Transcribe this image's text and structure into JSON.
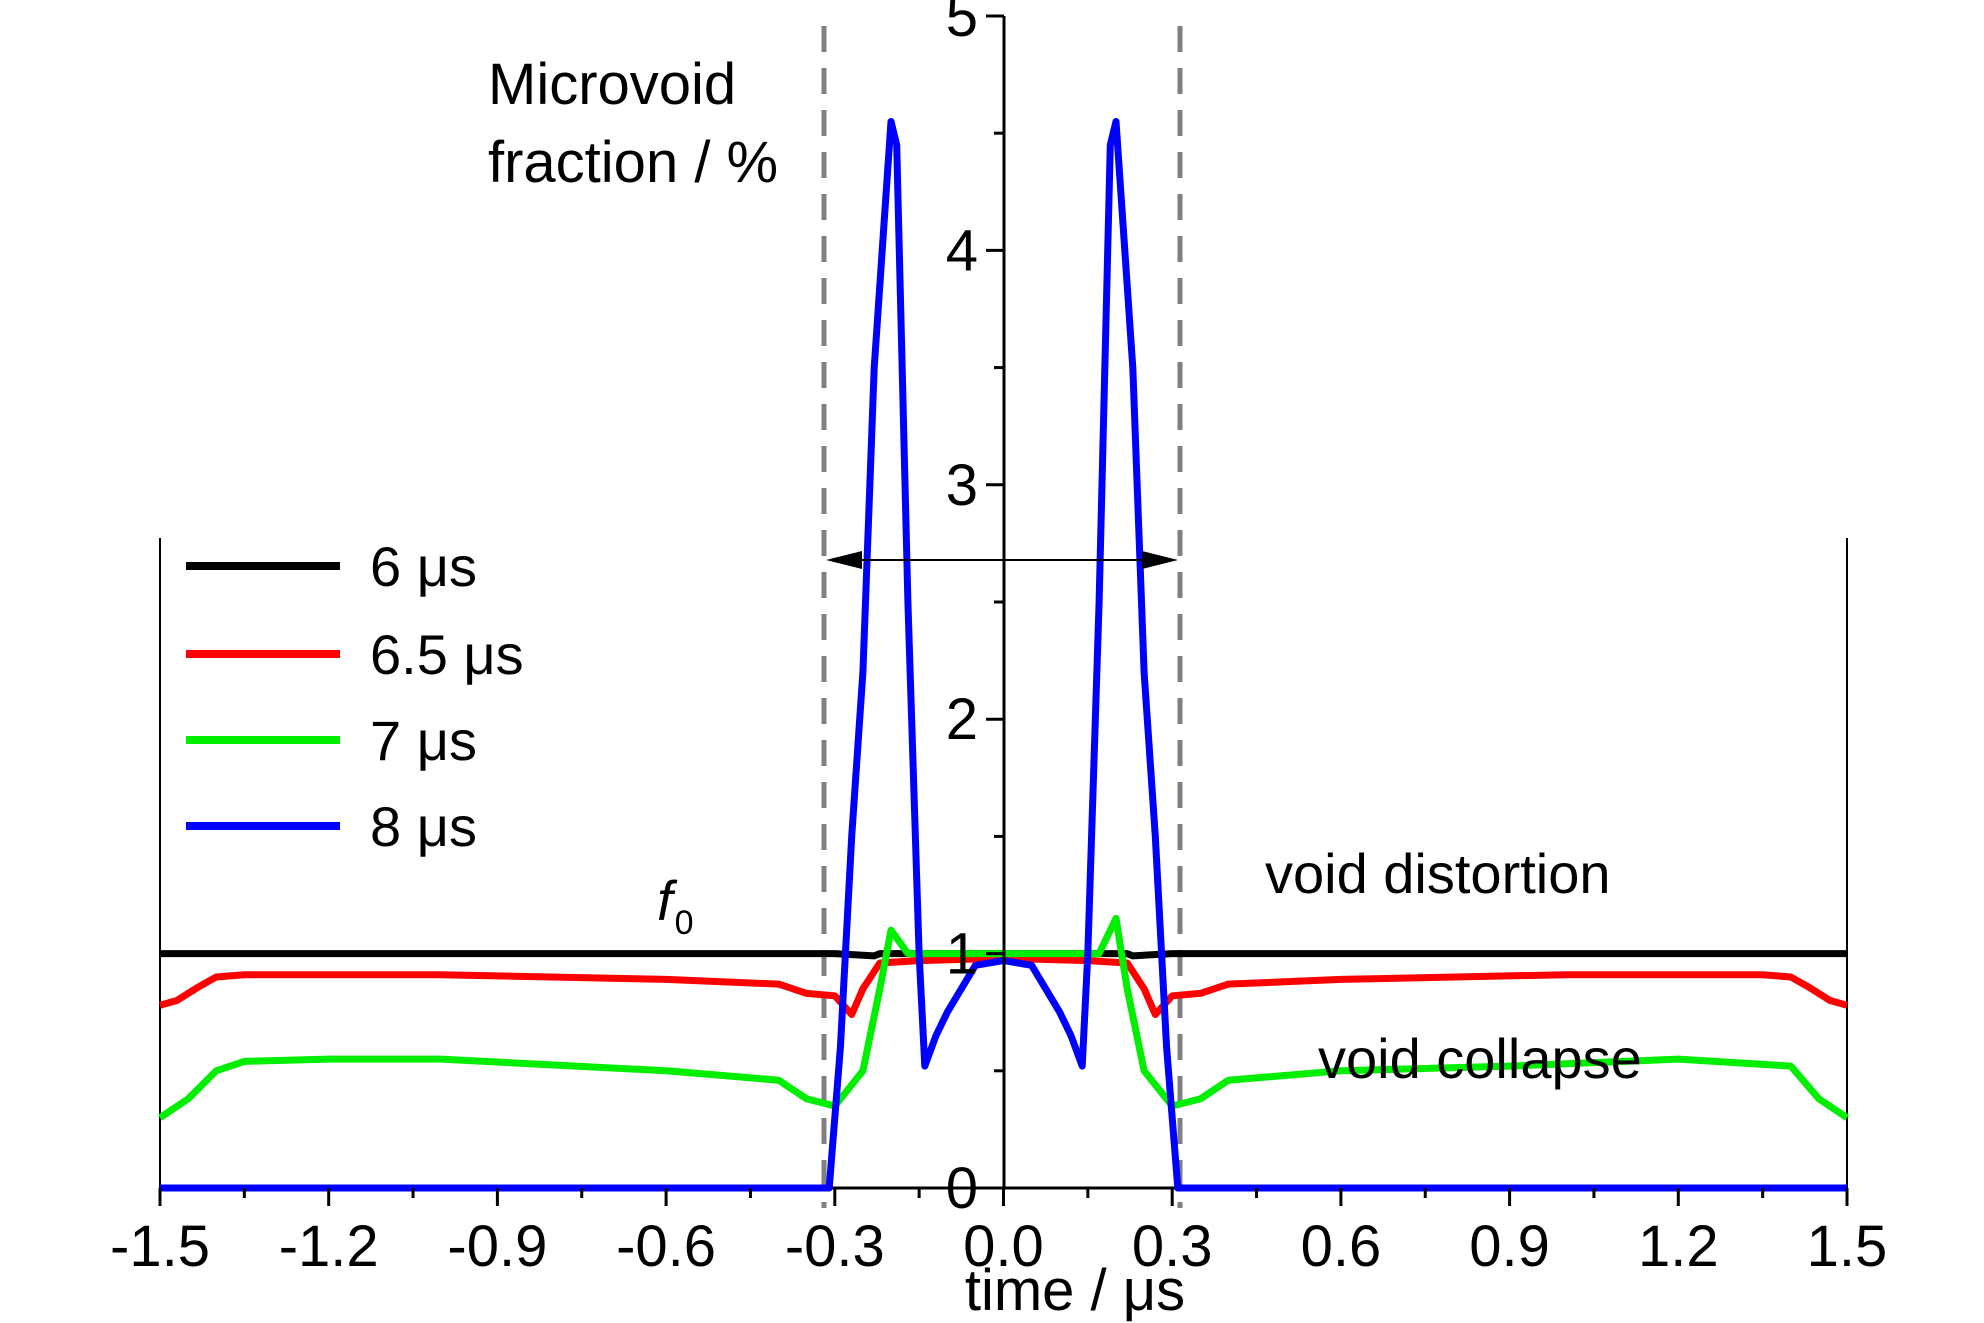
{
  "chart_data": {
    "type": "line",
    "title": "",
    "xlabel": "time / μs",
    "ylabel_line1": "Microvoid",
    "ylabel_line2": "fraction / %",
    "xlim": [
      -1.5,
      1.5
    ],
    "ylim": [
      0,
      5
    ],
    "x_ticks": [
      -1.5,
      -1.2,
      -0.9,
      -0.6,
      -0.3,
      0.0,
      0.3,
      0.6,
      0.9,
      1.2,
      1.5
    ],
    "x_tick_labels": [
      "-1.5",
      "-1.2",
      "-0.9",
      "-0.6",
      "-0.3",
      "0.0",
      "0.3",
      "0.6",
      "0.9",
      "1.2",
      "1.5"
    ],
    "y_ticks": [
      0,
      1,
      2,
      3,
      4,
      5
    ],
    "y_tick_labels": [
      "0",
      "1",
      "2",
      "3",
      "4",
      "5"
    ],
    "grid": false,
    "legend_position": "left",
    "series": [
      {
        "name": "6 μs",
        "color": "#000000",
        "points": [
          [
            -1.5,
            1.0
          ],
          [
            -0.3,
            1.0
          ],
          [
            -0.23,
            0.99
          ],
          [
            -0.22,
            1.0
          ],
          [
            0.22,
            1.0
          ],
          [
            0.23,
            0.99
          ],
          [
            0.3,
            1.0
          ],
          [
            1.5,
            1.0
          ]
        ]
      },
      {
        "name": "6.5 μs",
        "color": "#ff0000",
        "points": [
          [
            -1.5,
            0.78
          ],
          [
            -1.47,
            0.8
          ],
          [
            -1.43,
            0.86
          ],
          [
            -1.4,
            0.9
          ],
          [
            -1.35,
            0.91
          ],
          [
            -1.0,
            0.91
          ],
          [
            -0.6,
            0.89
          ],
          [
            -0.4,
            0.87
          ],
          [
            -0.35,
            0.83
          ],
          [
            -0.3,
            0.82
          ],
          [
            -0.27,
            0.74
          ],
          [
            -0.25,
            0.85
          ],
          [
            -0.22,
            0.96
          ],
          [
            -0.15,
            0.97
          ],
          [
            0.0,
            0.98
          ],
          [
            0.15,
            0.97
          ],
          [
            0.22,
            0.96
          ],
          [
            0.25,
            0.85
          ],
          [
            0.27,
            0.74
          ],
          [
            0.3,
            0.82
          ],
          [
            0.35,
            0.83
          ],
          [
            0.4,
            0.87
          ],
          [
            0.6,
            0.89
          ],
          [
            1.0,
            0.91
          ],
          [
            1.35,
            0.91
          ],
          [
            1.4,
            0.9
          ],
          [
            1.43,
            0.86
          ],
          [
            1.47,
            0.8
          ],
          [
            1.5,
            0.78
          ]
        ]
      },
      {
        "name": "7 μs",
        "color": "#00ee00",
        "points": [
          [
            -1.5,
            0.3
          ],
          [
            -1.45,
            0.38
          ],
          [
            -1.4,
            0.5
          ],
          [
            -1.35,
            0.54
          ],
          [
            -1.2,
            0.55
          ],
          [
            -1.0,
            0.55
          ],
          [
            -0.6,
            0.5
          ],
          [
            -0.4,
            0.46
          ],
          [
            -0.35,
            0.38
          ],
          [
            -0.3,
            0.35
          ],
          [
            -0.25,
            0.5
          ],
          [
            -0.22,
            0.85
          ],
          [
            -0.2,
            1.1
          ],
          [
            -0.17,
            1.0
          ],
          [
            -0.15,
            1.0
          ],
          [
            0.0,
            1.0
          ],
          [
            0.15,
            1.0
          ],
          [
            0.17,
            1.0
          ],
          [
            0.2,
            1.15
          ],
          [
            0.22,
            0.85
          ],
          [
            0.25,
            0.5
          ],
          [
            0.3,
            0.35
          ],
          [
            0.35,
            0.38
          ],
          [
            0.4,
            0.46
          ],
          [
            0.6,
            0.5
          ],
          [
            0.9,
            0.52
          ],
          [
            1.2,
            0.55
          ],
          [
            1.4,
            0.52
          ],
          [
            1.45,
            0.38
          ],
          [
            1.5,
            0.3
          ]
        ]
      },
      {
        "name": "8 μs",
        "color": "#0000ff",
        "points": [
          [
            -1.5,
            0.0
          ],
          [
            -0.31,
            0.0
          ],
          [
            -0.29,
            0.6
          ],
          [
            -0.27,
            1.5
          ],
          [
            -0.25,
            2.2
          ],
          [
            -0.23,
            3.5
          ],
          [
            -0.2,
            4.55
          ],
          [
            -0.19,
            4.45
          ],
          [
            -0.17,
            2.5
          ],
          [
            -0.15,
            1.0
          ],
          [
            -0.14,
            0.52
          ],
          [
            -0.12,
            0.65
          ],
          [
            -0.1,
            0.75
          ],
          [
            -0.05,
            0.95
          ],
          [
            0.0,
            0.97
          ],
          [
            0.05,
            0.95
          ],
          [
            0.1,
            0.75
          ],
          [
            0.12,
            0.65
          ],
          [
            0.14,
            0.52
          ],
          [
            0.15,
            1.0
          ],
          [
            0.17,
            2.5
          ],
          [
            0.19,
            4.45
          ],
          [
            0.2,
            4.55
          ],
          [
            0.23,
            3.5
          ],
          [
            0.25,
            2.2
          ],
          [
            0.27,
            1.5
          ],
          [
            0.29,
            0.6
          ],
          [
            0.31,
            0.0
          ],
          [
            1.5,
            0.0
          ]
        ]
      }
    ],
    "annotations": {
      "f0_label": "f",
      "f0_subscript": "0",
      "void_distortion": "void distortion",
      "void_collapse": "void collapse"
    }
  }
}
